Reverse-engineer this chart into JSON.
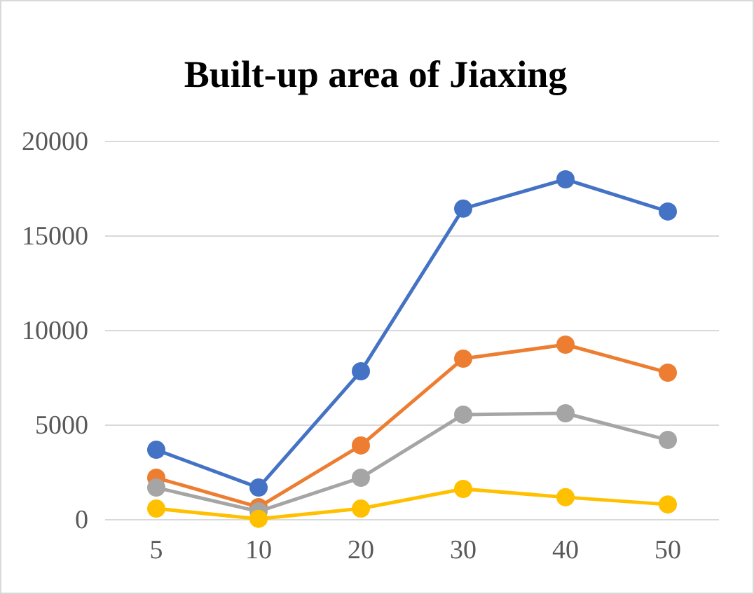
{
  "chart_data": {
    "type": "line",
    "title": "Built-up area of Jiaxing",
    "categories": [
      "5",
      "10",
      "20",
      "30",
      "40",
      "50"
    ],
    "series": [
      {
        "color": "#4472c4",
        "values": [
          3700,
          1700,
          7850,
          16450,
          18000,
          16300
        ]
      },
      {
        "color": "#ed7d31",
        "values": [
          2220,
          670,
          3930,
          8520,
          9260,
          7780
        ]
      },
      {
        "color": "#a5a5a5",
        "values": [
          1700,
          440,
          2220,
          5560,
          5630,
          4220
        ]
      },
      {
        "color": "#ffc000",
        "values": [
          590,
          50,
          590,
          1630,
          1190,
          810
        ]
      }
    ],
    "ylim": [
      0,
      20000
    ],
    "yticks": [
      0,
      5000,
      10000,
      15000,
      20000
    ],
    "grid": "y",
    "marker": "circle",
    "line_style": "solid"
  }
}
